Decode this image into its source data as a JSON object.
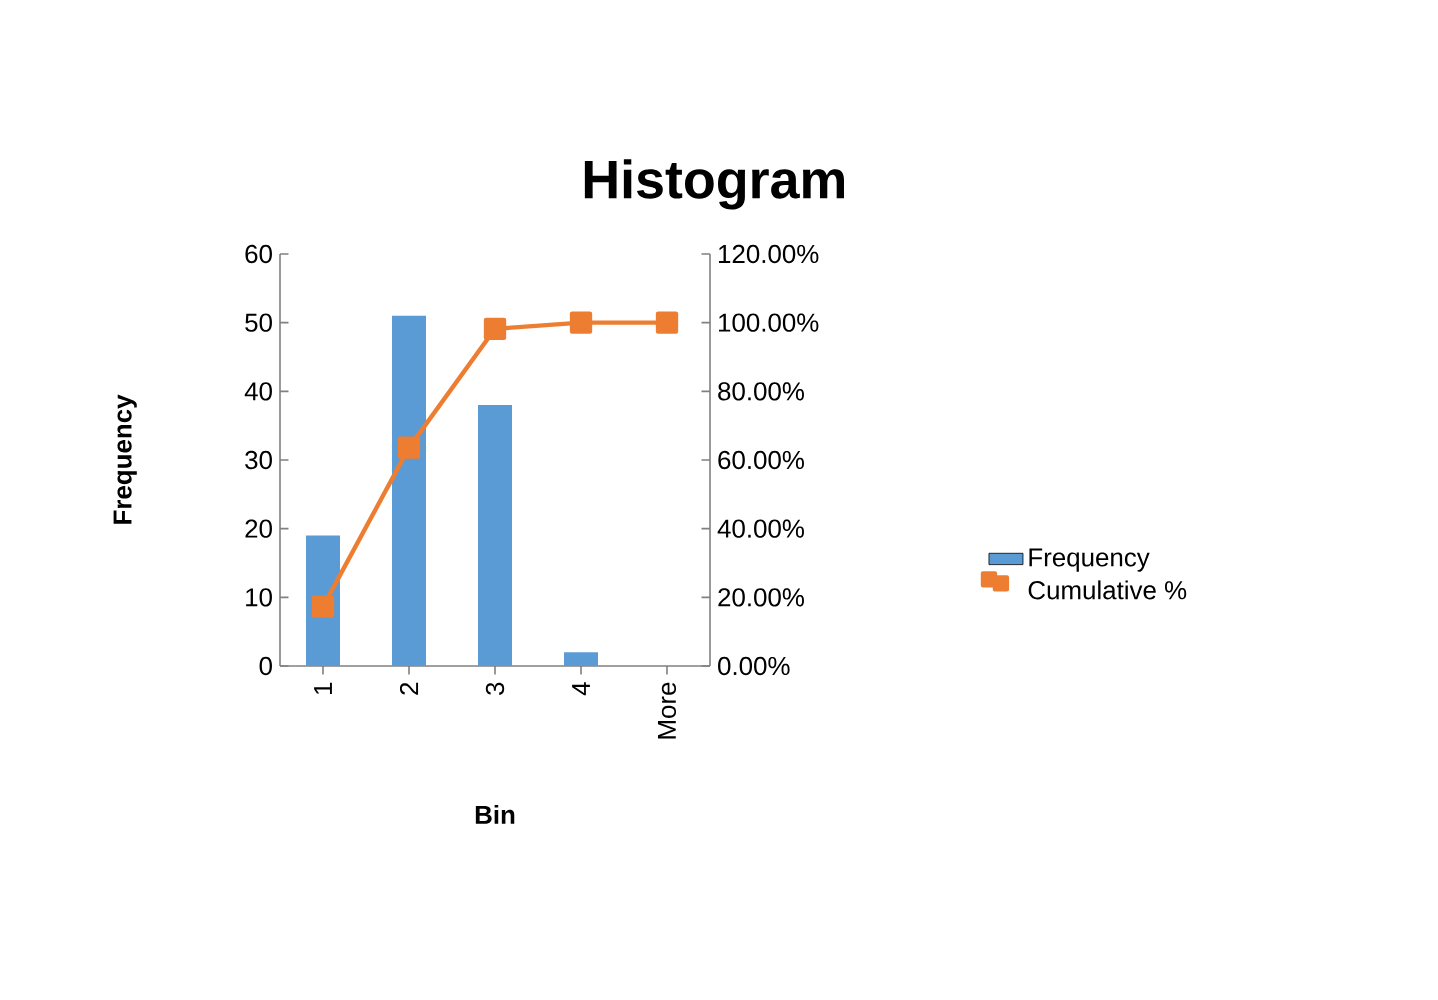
{
  "chart_data": {
    "type": "bar",
    "title": "Histogram",
    "xlabel": "Bin",
    "ylabel": "Frequency",
    "categories": [
      "1",
      "2",
      "3",
      "4",
      "More"
    ],
    "series": [
      {
        "name": "Frequency",
        "color": "#5b9bd5",
        "values": [
          19,
          51,
          38,
          2,
          0
        ]
      },
      {
        "name": "Cumulative %",
        "type": "line",
        "axis": "y2",
        "marker": "square",
        "color": "#ed7d31",
        "values": [
          17.3,
          63.6,
          98.2,
          100,
          100
        ]
      }
    ],
    "ylim": [
      0,
      60
    ],
    "yticks": [
      0,
      10,
      20,
      30,
      40,
      50,
      60
    ],
    "y2lim": [
      0,
      120
    ],
    "y2ticks": [
      {
        "value": 0,
        "label": "0.00%"
      },
      {
        "value": 20,
        "label": "20.00%"
      },
      {
        "value": 40,
        "label": "40.00%"
      },
      {
        "value": 60,
        "label": "60.00%"
      },
      {
        "value": 80,
        "label": "80.00%"
      },
      {
        "value": 100,
        "label": "100.00%"
      },
      {
        "value": 120,
        "label": "120.00%"
      }
    ],
    "grid": false,
    "legend": "right"
  }
}
